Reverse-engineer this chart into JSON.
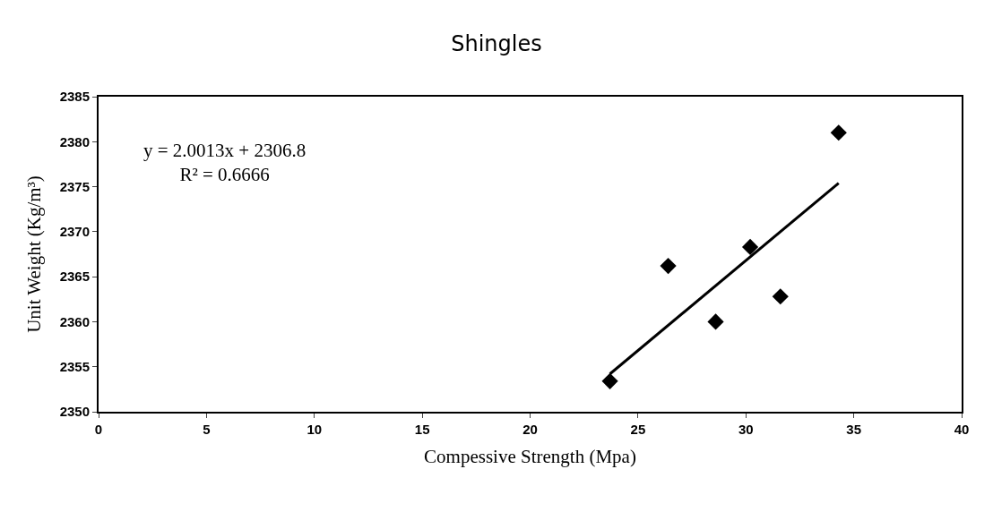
{
  "chart_data": {
    "type": "scatter",
    "title": "Shingles",
    "xlabel": "Compessive Strength (Mpa)",
    "ylabel": "Unit Weight (Kg/m³)",
    "xlim": [
      0,
      40
    ],
    "xticks": [
      0,
      5,
      10,
      15,
      20,
      25,
      30,
      35,
      40
    ],
    "ylim": [
      2350,
      2385
    ],
    "yticks": [
      2350,
      2355,
      2360,
      2365,
      2370,
      2375,
      2380,
      2385
    ],
    "legend": false,
    "marker": "diamond",
    "series": [
      {
        "color": "#000000",
        "x": [
          23.7,
          26.4,
          28.6,
          30.2,
          31.6,
          34.3
        ],
        "values": [
          2353.4,
          2366.2,
          2360.0,
          2368.3,
          2362.8,
          2381.0
        ]
      },
      {
        "type": "line",
        "color": "#000000",
        "marker": "none",
        "line_style": "solid",
        "x": [
          23.7,
          34.3
        ],
        "values": [
          2354.2,
          2375.4
        ]
      }
    ],
    "annotations": [
      "y = 2.0013x + 2306.8\nR² = 0.6666"
    ]
  }
}
